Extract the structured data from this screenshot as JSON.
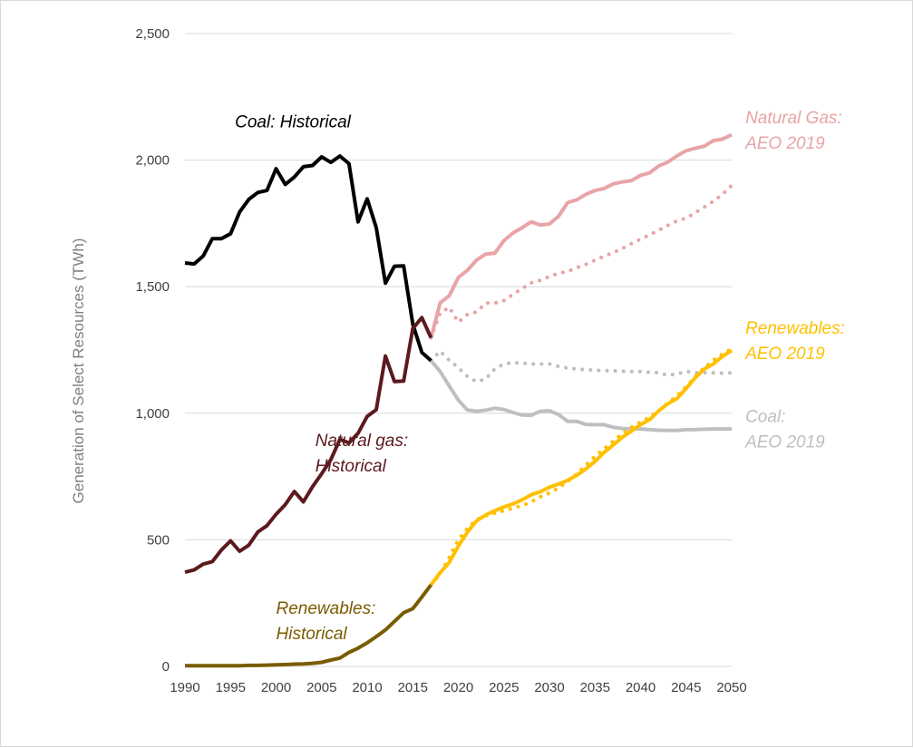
{
  "chart_data": {
    "type": "line",
    "title": "",
    "xlabel": "",
    "ylabel": "Generation of Select Resources (TWh)",
    "xlim": [
      1990,
      2050
    ],
    "ylim": [
      0,
      2500
    ],
    "x_ticks": [
      "1990",
      "1995",
      "2000",
      "2005",
      "2010",
      "2015",
      "2020",
      "2025",
      "2030",
      "2035",
      "2040",
      "2045",
      "2050"
    ],
    "y_ticks": [
      "0",
      "500",
      "1,000",
      "1,500",
      "2,000",
      "2,500"
    ],
    "grid": true,
    "series": [
      {
        "name": "Coal: Historical",
        "color": "#000000",
        "style": "solid",
        "x": [
          1990,
          1991,
          1992,
          1993,
          1994,
          1995,
          1996,
          1997,
          1998,
          1999,
          2000,
          2001,
          2002,
          2003,
          2004,
          2005,
          2006,
          2007,
          2008,
          2009,
          2010,
          2011,
          2012,
          2013,
          2014,
          2015,
          2016,
          2017
        ],
        "y": [
          1594,
          1590,
          1621,
          1690,
          1690,
          1709,
          1795,
          1845,
          1872,
          1880,
          1966,
          1904,
          1933,
          1974,
          1979,
          2013,
          1991,
          2016,
          1986,
          1756,
          1847,
          1733,
          1514,
          1581,
          1582,
          1352,
          1240,
          1208
        ]
      },
      {
        "name": "Natural gas: Historical",
        "color": "#5c1a1e",
        "style": "solid",
        "x": [
          1990,
          1991,
          1992,
          1993,
          1994,
          1995,
          1996,
          1997,
          1998,
          1999,
          2000,
          2001,
          2002,
          2003,
          2004,
          2005,
          2006,
          2007,
          2008,
          2009,
          2010,
          2011,
          2012,
          2013,
          2014,
          2015,
          2016,
          2017
        ],
        "y": [
          372,
          381,
          404,
          414,
          460,
          496,
          455,
          479,
          531,
          556,
          601,
          639,
          691,
          650,
          710,
          761,
          816,
          897,
          883,
          921,
          988,
          1014,
          1226,
          1125,
          1127,
          1335,
          1378,
          1298
        ]
      },
      {
        "name": "Renewables: Historical",
        "color": "#7a5c00",
        "style": "solid",
        "x": [
          1990,
          1991,
          1992,
          1993,
          1994,
          1995,
          1996,
          1997,
          1998,
          1999,
          2000,
          2001,
          2002,
          2003,
          2004,
          2005,
          2006,
          2007,
          2008,
          2009,
          2010,
          2011,
          2012,
          2013,
          2014,
          2015,
          2016,
          2017
        ],
        "y": [
          3,
          3,
          3,
          3,
          3,
          3,
          3,
          4,
          4,
          5,
          6,
          7,
          9,
          10,
          12,
          16,
          25,
          33,
          55,
          72,
          93,
          118,
          144,
          178,
          212,
          228,
          274,
          322
        ]
      },
      {
        "name": "Natural Gas: AEO 2019",
        "color": "#e8a4a6",
        "style": "solid",
        "x": [
          2017,
          2018,
          2019,
          2020,
          2021,
          2022,
          2023,
          2024,
          2025,
          2026,
          2027,
          2028,
          2029,
          2030,
          2031,
          2032,
          2033,
          2034,
          2035,
          2036,
          2037,
          2038,
          2039,
          2040,
          2041,
          2042,
          2043,
          2044,
          2045,
          2046,
          2047,
          2048,
          2049,
          2050
        ],
        "y": [
          1298,
          1436,
          1464,
          1536,
          1565,
          1605,
          1629,
          1632,
          1682,
          1712,
          1733,
          1756,
          1744,
          1748,
          1778,
          1832,
          1843,
          1865,
          1880,
          1888,
          1906,
          1914,
          1919,
          1940,
          1950,
          1977,
          1992,
          2017,
          2037,
          2047,
          2055,
          2077,
          2083,
          2100
        ]
      },
      {
        "name": "Natural Gas: AEO 2019 (alt)",
        "color": "#e8a4a6",
        "style": "dotted",
        "x": [
          2017,
          2018,
          2019,
          2020,
          2021,
          2022,
          2023,
          2024,
          2025,
          2026,
          2027,
          2028,
          2029,
          2030,
          2031,
          2032,
          2033,
          2034,
          2035,
          2036,
          2037,
          2038,
          2039,
          2040,
          2041,
          2042,
          2043,
          2044,
          2045,
          2046,
          2047,
          2048,
          2049,
          2050
        ],
        "y": [
          1298,
          1395,
          1419,
          1360,
          1390,
          1400,
          1435,
          1435,
          1445,
          1470,
          1493,
          1515,
          1525,
          1540,
          1553,
          1560,
          1575,
          1588,
          1605,
          1620,
          1635,
          1651,
          1670,
          1688,
          1705,
          1723,
          1742,
          1760,
          1771,
          1792,
          1815,
          1838,
          1865,
          1900
        ]
      },
      {
        "name": "Coal: AEO 2019",
        "color": "#bfbfbf",
        "style": "solid",
        "x": [
          2017,
          2018,
          2019,
          2020,
          2021,
          2022,
          2023,
          2024,
          2025,
          2026,
          2027,
          2028,
          2029,
          2030,
          2031,
          2032,
          2033,
          2034,
          2035,
          2036,
          2037,
          2038,
          2039,
          2040,
          2041,
          2042,
          2043,
          2044,
          2045,
          2046,
          2047,
          2048,
          2049,
          2050
        ],
        "y": [
          1208,
          1165,
          1108,
          1052,
          1013,
          1008,
          1012,
          1020,
          1015,
          1003,
          993,
          992,
          1008,
          1010,
          995,
          968,
          968,
          956,
          955,
          955,
          945,
          940,
          938,
          938,
          935,
          933,
          932,
          932,
          935,
          935,
          937,
          938,
          938,
          938
        ]
      },
      {
        "name": "Coal: AEO 2019 (alt)",
        "color": "#bfbfbf",
        "style": "dotted",
        "x": [
          2017,
          2018,
          2019,
          2020,
          2021,
          2022,
          2023,
          2024,
          2025,
          2026,
          2027,
          2028,
          2029,
          2030,
          2031,
          2032,
          2033,
          2034,
          2035,
          2036,
          2037,
          2038,
          2039,
          2040,
          2041,
          2042,
          2043,
          2044,
          2045,
          2046,
          2047,
          2048,
          2049,
          2050
        ],
        "y": [
          1208,
          1245,
          1210,
          1180,
          1145,
          1125,
          1135,
          1175,
          1195,
          1200,
          1198,
          1195,
          1195,
          1195,
          1185,
          1178,
          1175,
          1172,
          1170,
          1168,
          1168,
          1166,
          1165,
          1165,
          1162,
          1160,
          1150,
          1155,
          1165,
          1160,
          1160,
          1160,
          1158,
          1160
        ]
      },
      {
        "name": "Renewables: AEO 2019",
        "color": "#ffc000",
        "style": "solid",
        "x": [
          2017,
          2018,
          2019,
          2020,
          2021,
          2022,
          2023,
          2024,
          2025,
          2026,
          2027,
          2028,
          2029,
          2030,
          2031,
          2032,
          2033,
          2034,
          2035,
          2036,
          2037,
          2038,
          2039,
          2040,
          2041,
          2042,
          2043,
          2044,
          2045,
          2046,
          2047,
          2048,
          2049,
          2050
        ],
        "y": [
          322,
          370,
          410,
          475,
          530,
          575,
          598,
          615,
          630,
          642,
          658,
          678,
          690,
          708,
          720,
          735,
          755,
          780,
          810,
          845,
          875,
          905,
          930,
          955,
          975,
          1010,
          1038,
          1058,
          1098,
          1140,
          1175,
          1195,
          1225,
          1248
        ]
      },
      {
        "name": "Renewables: AEO 2019 (alt)",
        "color": "#ffc000",
        "style": "dotted",
        "x": [
          2017,
          2018,
          2019,
          2020,
          2021,
          2022,
          2023,
          2024,
          2025,
          2026,
          2027,
          2028,
          2029,
          2030,
          2031,
          2032,
          2033,
          2034,
          2035,
          2036,
          2037,
          2038,
          2039,
          2040,
          2041,
          2042,
          2043,
          2044,
          2045,
          2046,
          2047,
          2048,
          2049,
          2050
        ],
        "y": [
          322,
          365,
          430,
          500,
          545,
          580,
          595,
          605,
          615,
          625,
          635,
          650,
          670,
          685,
          705,
          730,
          760,
          795,
          830,
          860,
          890,
          920,
          945,
          965,
          985,
          1010,
          1040,
          1070,
          1105,
          1145,
          1180,
          1210,
          1235,
          1255
        ]
      }
    ],
    "annotations": [
      {
        "lines": [
          "Coal: Historical"
        ],
        "color": "#000000",
        "x": 2008.2,
        "y": 2130,
        "anchor": "end"
      },
      {
        "lines": [
          "Natural gas:",
          "Historical"
        ],
        "color": "#5c1a1e",
        "x": 2004.3,
        "y": 870,
        "anchor": "start"
      },
      {
        "lines": [
          "Renewables:",
          "Historical"
        ],
        "color": "#7a5c00",
        "x": 2000.0,
        "y": 208,
        "anchor": "start"
      },
      {
        "lines": [
          "Natural Gas:",
          "AEO 2019"
        ],
        "color": "#e8a4a6",
        "x": 2051.5,
        "y": 2145,
        "anchor": "start"
      },
      {
        "lines": [
          "Renewables:",
          "AEO 2019"
        ],
        "color": "#ffc000",
        "x": 2051.5,
        "y": 1315,
        "anchor": "start"
      },
      {
        "lines": [
          "Coal:",
          "AEO 2019"
        ],
        "color": "#bfbfbf",
        "x": 2051.5,
        "y": 965,
        "anchor": "start"
      }
    ]
  }
}
